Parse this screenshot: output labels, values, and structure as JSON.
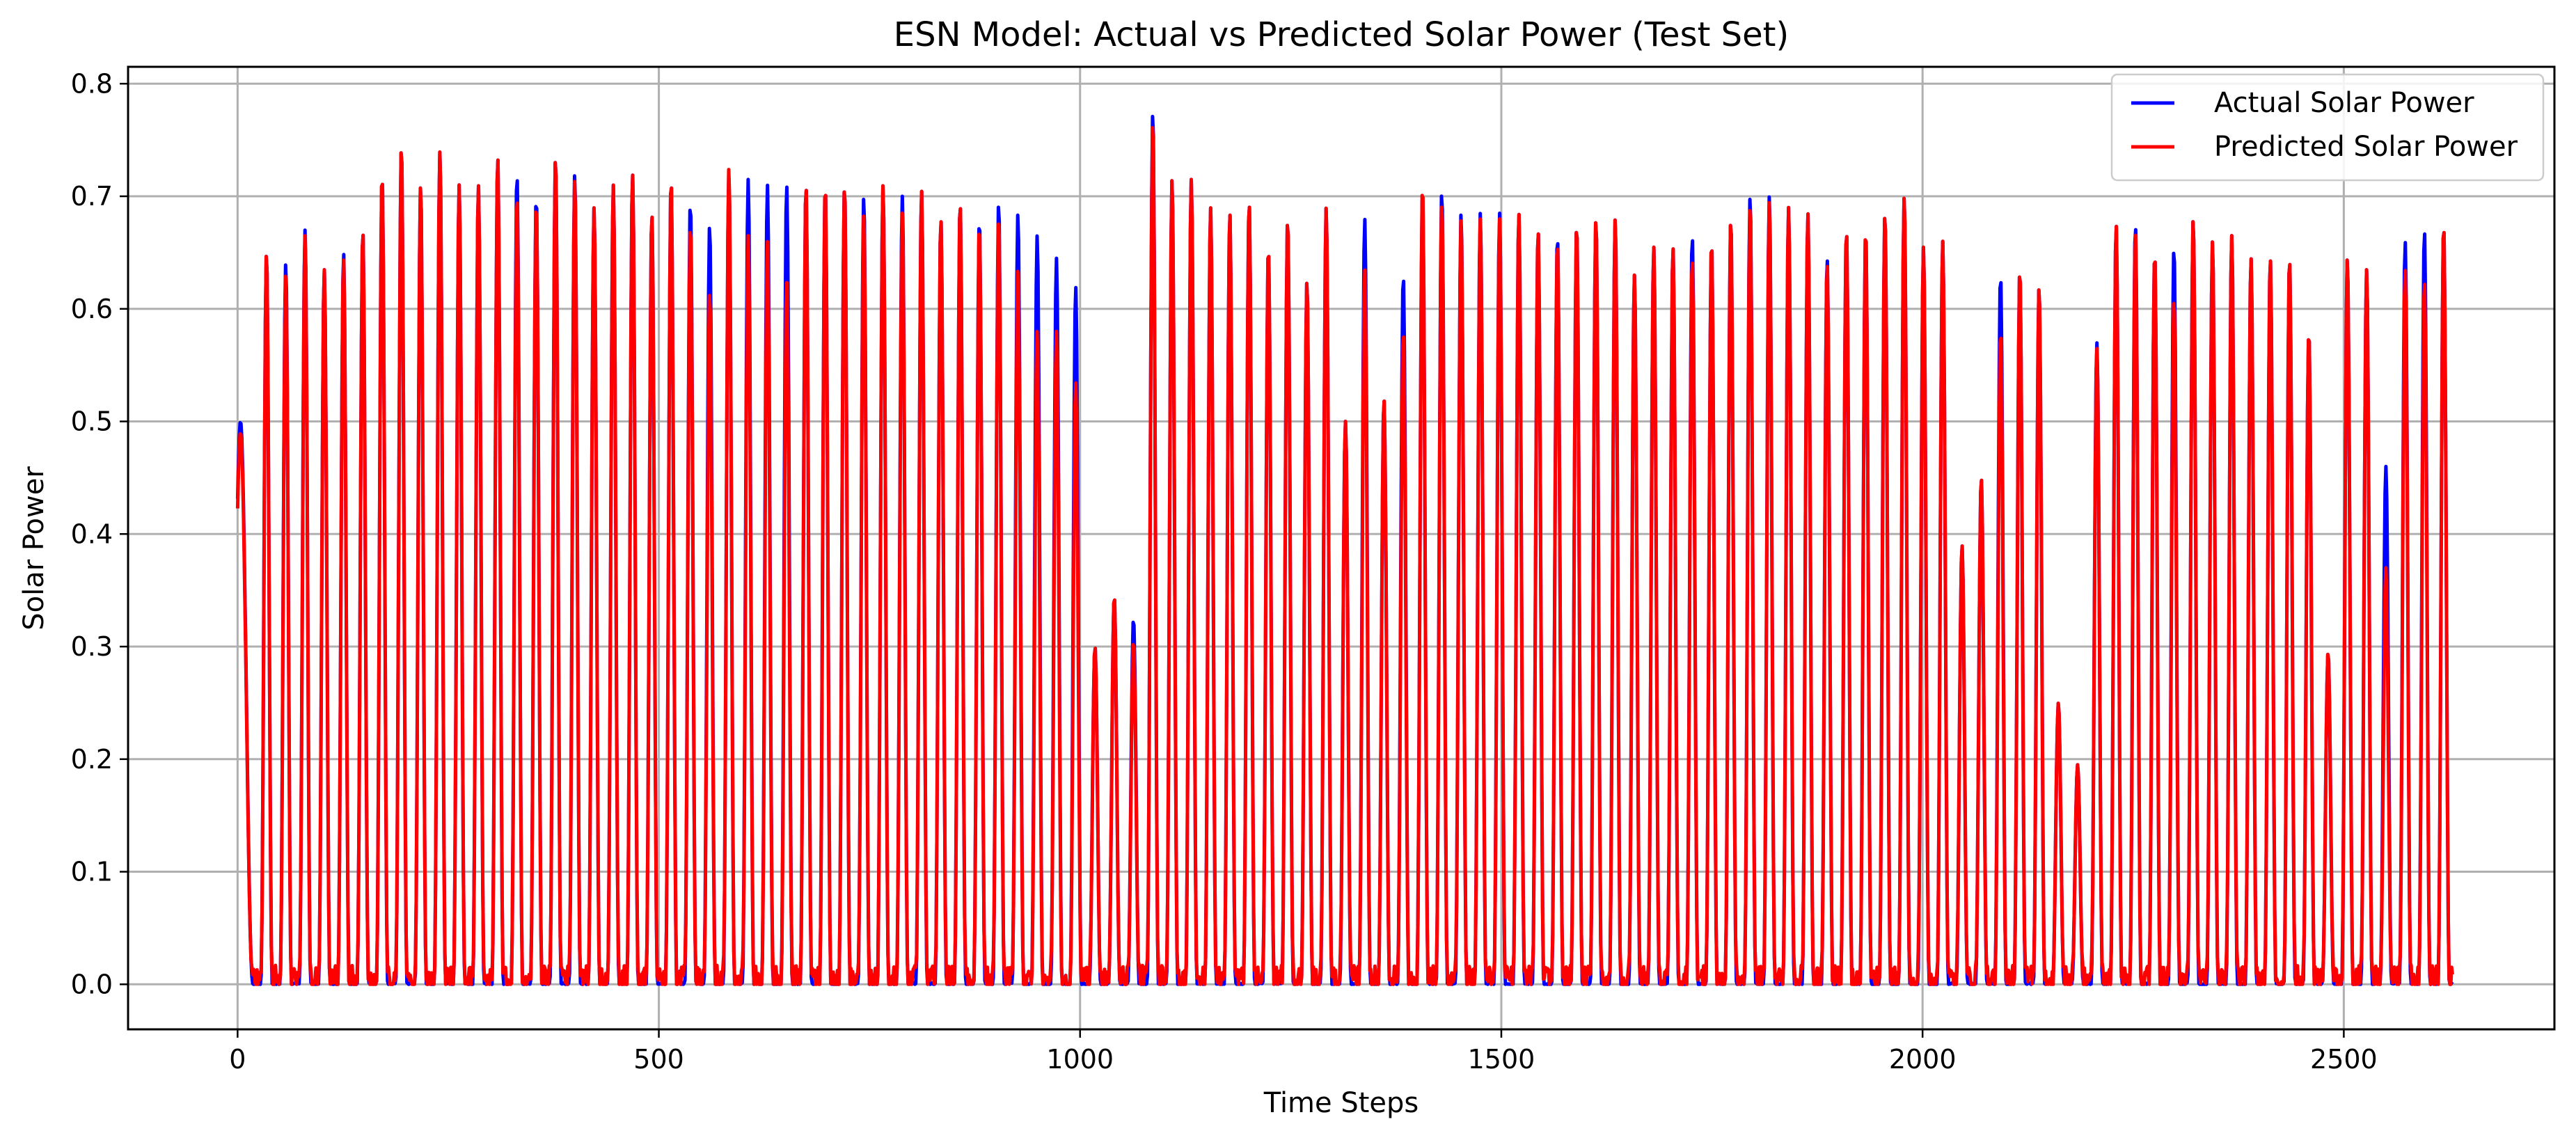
{
  "chart_data": {
    "type": "line",
    "title": "ESN Model: Actual vs Predicted Solar Power (Test Set)",
    "xlabel": "Time Steps",
    "ylabel": "Solar Power",
    "xlim": [
      -130,
      2750
    ],
    "ylim": [
      -0.04,
      0.815
    ],
    "xticks": [
      0,
      500,
      1000,
      1500,
      2000,
      2500
    ],
    "yticks": [
      0.0,
      0.1,
      0.2,
      0.3,
      0.4,
      0.5,
      0.6,
      0.7,
      0.8
    ],
    "xtick_labels": [
      "0",
      "500",
      "1000",
      "1500",
      "2000",
      "2500"
    ],
    "ytick_labels": [
      "0.0",
      "0.1",
      "0.2",
      "0.3",
      "0.4",
      "0.5",
      "0.6",
      "0.7",
      "0.8"
    ],
    "grid": true,
    "legend_position": "top-right",
    "n_points": 2630,
    "series": [
      {
        "name": "Actual Solar Power",
        "color": "#0000ff",
        "daily_peaks": [
          0.5,
          0.65,
          0.64,
          0.67,
          0.635,
          0.65,
          0.67,
          0.72,
          0.745,
          0.71,
          0.74,
          0.71,
          0.71,
          0.735,
          0.72,
          0.7,
          0.735,
          0.72,
          0.69,
          0.71,
          0.72,
          0.685,
          0.715,
          0.695,
          0.675,
          0.72,
          0.715,
          0.71,
          0.71,
          0.71,
          0.71,
          0.71,
          0.7,
          0.71,
          0.7,
          0.705,
          0.68,
          0.695,
          0.68,
          0.695,
          0.685,
          0.665,
          0.645,
          0.62,
          0.3,
          0.345,
          0.325,
          0.775,
          0.715,
          0.715,
          0.69,
          0.685,
          0.695,
          0.655,
          0.68,
          0.625,
          0.69,
          0.5,
          0.68,
          0.52,
          0.63,
          0.705,
          0.705,
          0.685,
          0.685,
          0.685,
          0.685,
          0.67,
          0.665,
          0.675,
          0.68,
          0.68,
          0.63,
          0.655,
          0.655,
          0.665,
          0.66,
          0.68,
          0.7,
          0.7,
          0.69,
          0.685,
          0.645,
          0.67,
          0.67,
          0.685,
          0.7,
          0.655,
          0.66,
          0.39,
          0.45,
          0.63,
          0.635,
          0.62,
          0.25,
          0.195,
          0.57,
          0.675,
          0.675,
          0.65,
          0.655,
          0.68,
          0.66,
          0.665,
          0.645,
          0.645,
          0.645,
          0.58,
          0.295,
          0.645,
          0.635,
          0.46,
          0.66,
          0.67,
          0.675
        ]
      },
      {
        "name": "Predicted Solar Power",
        "color": "#ff0000",
        "daily_peaks": [
          0.49,
          0.65,
          0.63,
          0.665,
          0.635,
          0.645,
          0.67,
          0.72,
          0.745,
          0.71,
          0.74,
          0.71,
          0.71,
          0.735,
          0.7,
          0.695,
          0.735,
          0.715,
          0.69,
          0.71,
          0.72,
          0.685,
          0.715,
          0.675,
          0.615,
          0.725,
          0.665,
          0.66,
          0.625,
          0.71,
          0.71,
          0.71,
          0.685,
          0.71,
          0.685,
          0.705,
          0.68,
          0.695,
          0.675,
          0.68,
          0.635,
          0.58,
          0.58,
          0.535,
          0.3,
          0.345,
          0.305,
          0.765,
          0.715,
          0.715,
          0.69,
          0.685,
          0.695,
          0.655,
          0.68,
          0.625,
          0.69,
          0.5,
          0.635,
          0.52,
          0.58,
          0.71,
          0.695,
          0.68,
          0.68,
          0.68,
          0.685,
          0.67,
          0.66,
          0.675,
          0.68,
          0.68,
          0.63,
          0.655,
          0.655,
          0.645,
          0.66,
          0.68,
          0.69,
          0.695,
          0.69,
          0.685,
          0.64,
          0.67,
          0.67,
          0.685,
          0.7,
          0.655,
          0.66,
          0.39,
          0.45,
          0.58,
          0.635,
          0.62,
          0.25,
          0.195,
          0.565,
          0.675,
          0.67,
          0.65,
          0.61,
          0.68,
          0.66,
          0.665,
          0.645,
          0.645,
          0.645,
          0.58,
          0.295,
          0.645,
          0.635,
          0.37,
          0.635,
          0.625,
          0.675
        ]
      }
    ]
  }
}
